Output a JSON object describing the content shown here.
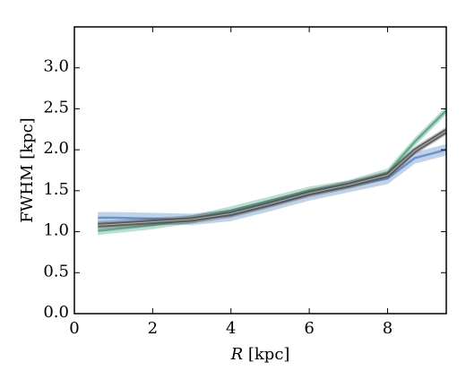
{
  "chart_data": {
    "type": "line",
    "title": "",
    "xlabel_var": "R",
    "xlabel_unit": " [kpc]",
    "ylabel": "FWHM [kpc]",
    "xlim": [
      0,
      9.5
    ],
    "ylim": [
      0.0,
      3.5
    ],
    "xticks": [
      0,
      2,
      4,
      6,
      8
    ],
    "yticks": [
      0.0,
      0.5,
      1.0,
      1.5,
      2.0,
      2.5,
      3.0
    ],
    "ytick_labels": [
      "0.0",
      "0.5",
      "1.0",
      "1.5",
      "2.0",
      "2.5",
      "3.0"
    ],
    "grid": false,
    "legend": "none",
    "series": [
      {
        "color": "#4a7fc1",
        "band_width": 0.07,
        "x": [
          0.6,
          1.0,
          2.0,
          3.0,
          4.0,
          5.0,
          6.0,
          7.0,
          8.0,
          8.7,
          9.5
        ],
        "y": [
          1.17,
          1.17,
          1.16,
          1.15,
          1.2,
          1.32,
          1.45,
          1.55,
          1.65,
          1.9,
          2.0
        ]
      },
      {
        "color": "#3e9e78",
        "band_width": 0.05,
        "x": [
          0.6,
          1.0,
          2.0,
          3.0,
          4.0,
          5.0,
          6.0,
          7.0,
          8.0,
          8.7,
          9.5
        ],
        "y": [
          1.01,
          1.03,
          1.08,
          1.15,
          1.26,
          1.38,
          1.5,
          1.58,
          1.72,
          2.1,
          2.48
        ]
      },
      {
        "color": "#555555",
        "band_width": 0.05,
        "x": [
          0.6,
          1.0,
          2.0,
          3.0,
          4.0,
          5.0,
          6.0,
          7.0,
          8.0,
          8.7,
          9.5
        ],
        "y": [
          1.08,
          1.09,
          1.12,
          1.15,
          1.22,
          1.34,
          1.47,
          1.57,
          1.69,
          1.99,
          2.23
        ]
      }
    ]
  }
}
